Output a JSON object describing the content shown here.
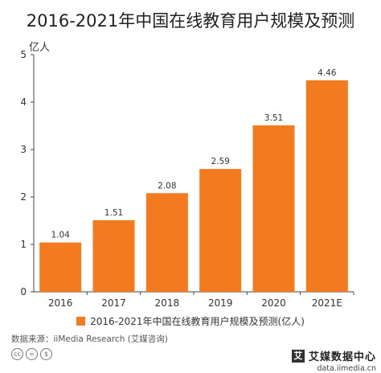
{
  "chart_data": {
    "type": "bar",
    "title": "2016-2021年中国在线教育用户规模及预测",
    "ylabel": "亿人",
    "xlabel": "",
    "categories": [
      "2016",
      "2017",
      "2018",
      "2019",
      "2020",
      "2021E"
    ],
    "series": [
      {
        "name": "2016-2021年中国在线教育用户规模及预测(亿人)",
        "values": [
          1.04,
          1.51,
          2.08,
          2.59,
          3.51,
          4.46
        ]
      }
    ],
    "data_labels": [
      "1.04",
      "1.51",
      "2.08",
      "2.59",
      "3.51",
      "4.46"
    ],
    "y_ticks": [
      "0",
      "1",
      "2",
      "3",
      "4",
      "5"
    ],
    "ylim": [
      0,
      5
    ],
    "grid": false,
    "legend_position": "bottom",
    "bar_color": "#f47a1f"
  },
  "source_text": "数据来源：iiMedia Research (艾媒咨询)",
  "logo": {
    "mark": "艾",
    "name": "艾媒数据中心",
    "url": "data.iimedia.cn"
  },
  "license_icons": [
    "cc-icon",
    "equal-icon",
    "noncommercial-icon"
  ]
}
